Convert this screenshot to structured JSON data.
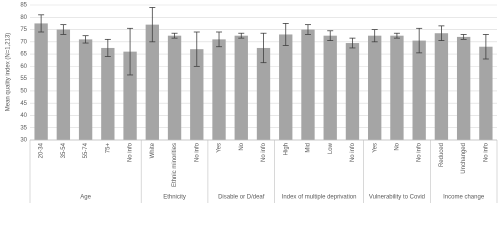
{
  "chart_data": {
    "type": "bar",
    "y_label": "Mean quality index (N=1,213)",
    "color": "#a5a5a5",
    "error_color": "#404040",
    "ylim": [
      30,
      85
    ],
    "yticks": [
      30,
      35,
      40,
      45,
      50,
      55,
      60,
      65,
      70,
      75,
      80,
      85
    ],
    "grid": true,
    "groups": [
      {
        "name": "Age",
        "categories": [
          "20-34",
          "35-54",
          "55-74",
          "75+",
          "No info"
        ],
        "values": [
          77.5,
          75,
          71,
          67.5,
          66
        ],
        "errors": [
          3.5,
          2,
          1.5,
          3.5,
          9.5
        ]
      },
      {
        "name": "Ethnicity",
        "categories": [
          "White",
          "Ethnic minorities",
          "No info"
        ],
        "values": [
          77,
          72.5,
          67
        ],
        "errors": [
          7,
          1,
          7
        ]
      },
      {
        "name": "Disable or D/deaf",
        "categories": [
          "Yes",
          "No",
          "No info"
        ],
        "values": [
          71,
          72.5,
          67.5
        ],
        "errors": [
          3,
          1,
          6
        ]
      },
      {
        "name": "Index of multiple deprivation",
        "categories": [
          "High",
          "Mid",
          "Low",
          "No info"
        ],
        "values": [
          73,
          75,
          72.5,
          69.5
        ],
        "errors": [
          4.5,
          2,
          2,
          2
        ]
      },
      {
        "name": "Vulnerability to Covid",
        "categories": [
          "Yes",
          "No",
          "No info"
        ],
        "values": [
          72.5,
          72.5,
          70.5
        ],
        "errors": [
          2.5,
          1,
          5
        ]
      },
      {
        "name": "Income change",
        "categories": [
          "Reduced",
          "Unchanged",
          "No info"
        ],
        "values": [
          73.5,
          72,
          68
        ],
        "errors": [
          3,
          1,
          5
        ]
      }
    ]
  }
}
